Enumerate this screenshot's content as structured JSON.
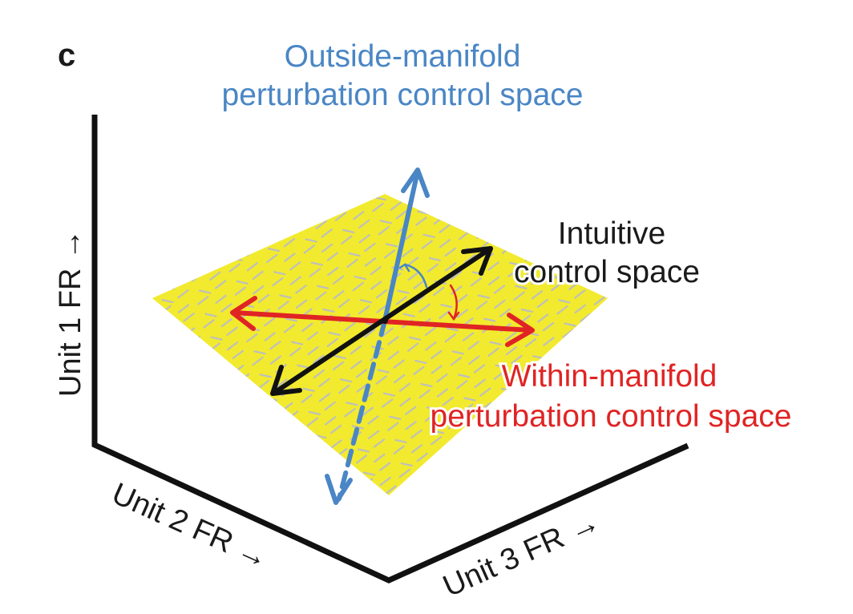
{
  "panel_label": "c",
  "colors": {
    "axes": "#111111",
    "manifold_fill": "#f2ea2e",
    "manifold_hatch": "#b9bcc8",
    "outside": "#4a86c5",
    "within": "#e02424",
    "intuitive": "#111111",
    "text": "#1a1a1a"
  },
  "axes": {
    "unit1": "Unit 1 FR →",
    "unit2": "Unit 2 FR →",
    "unit3": "Unit 3 FR →"
  },
  "labels": {
    "outside_line1": "Outside-manifold",
    "outside_line2": "perturbation control space",
    "intuitive_line1": "Intuitive",
    "intuitive_line2": "control space",
    "within_line1": "Within-manifold",
    "within_line2": "perturbation control space"
  }
}
